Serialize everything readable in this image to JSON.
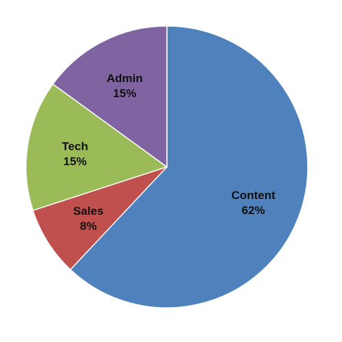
{
  "chart_data": {
    "type": "pie",
    "title": "",
    "start_angle_deg": 0,
    "direction": "clockwise",
    "legend": "none",
    "slices": [
      {
        "label": "Content",
        "value": 62,
        "value_label": "62%",
        "color": "#4F81BD"
      },
      {
        "label": "Sales",
        "value": 8,
        "value_label": "8%",
        "color": "#C0504D"
      },
      {
        "label": "Tech",
        "value": 15,
        "value_label": "15%",
        "color": "#9BBB59"
      },
      {
        "label": "Admin",
        "value": 15,
        "value_label": "15%",
        "color": "#8064A2"
      }
    ]
  }
}
